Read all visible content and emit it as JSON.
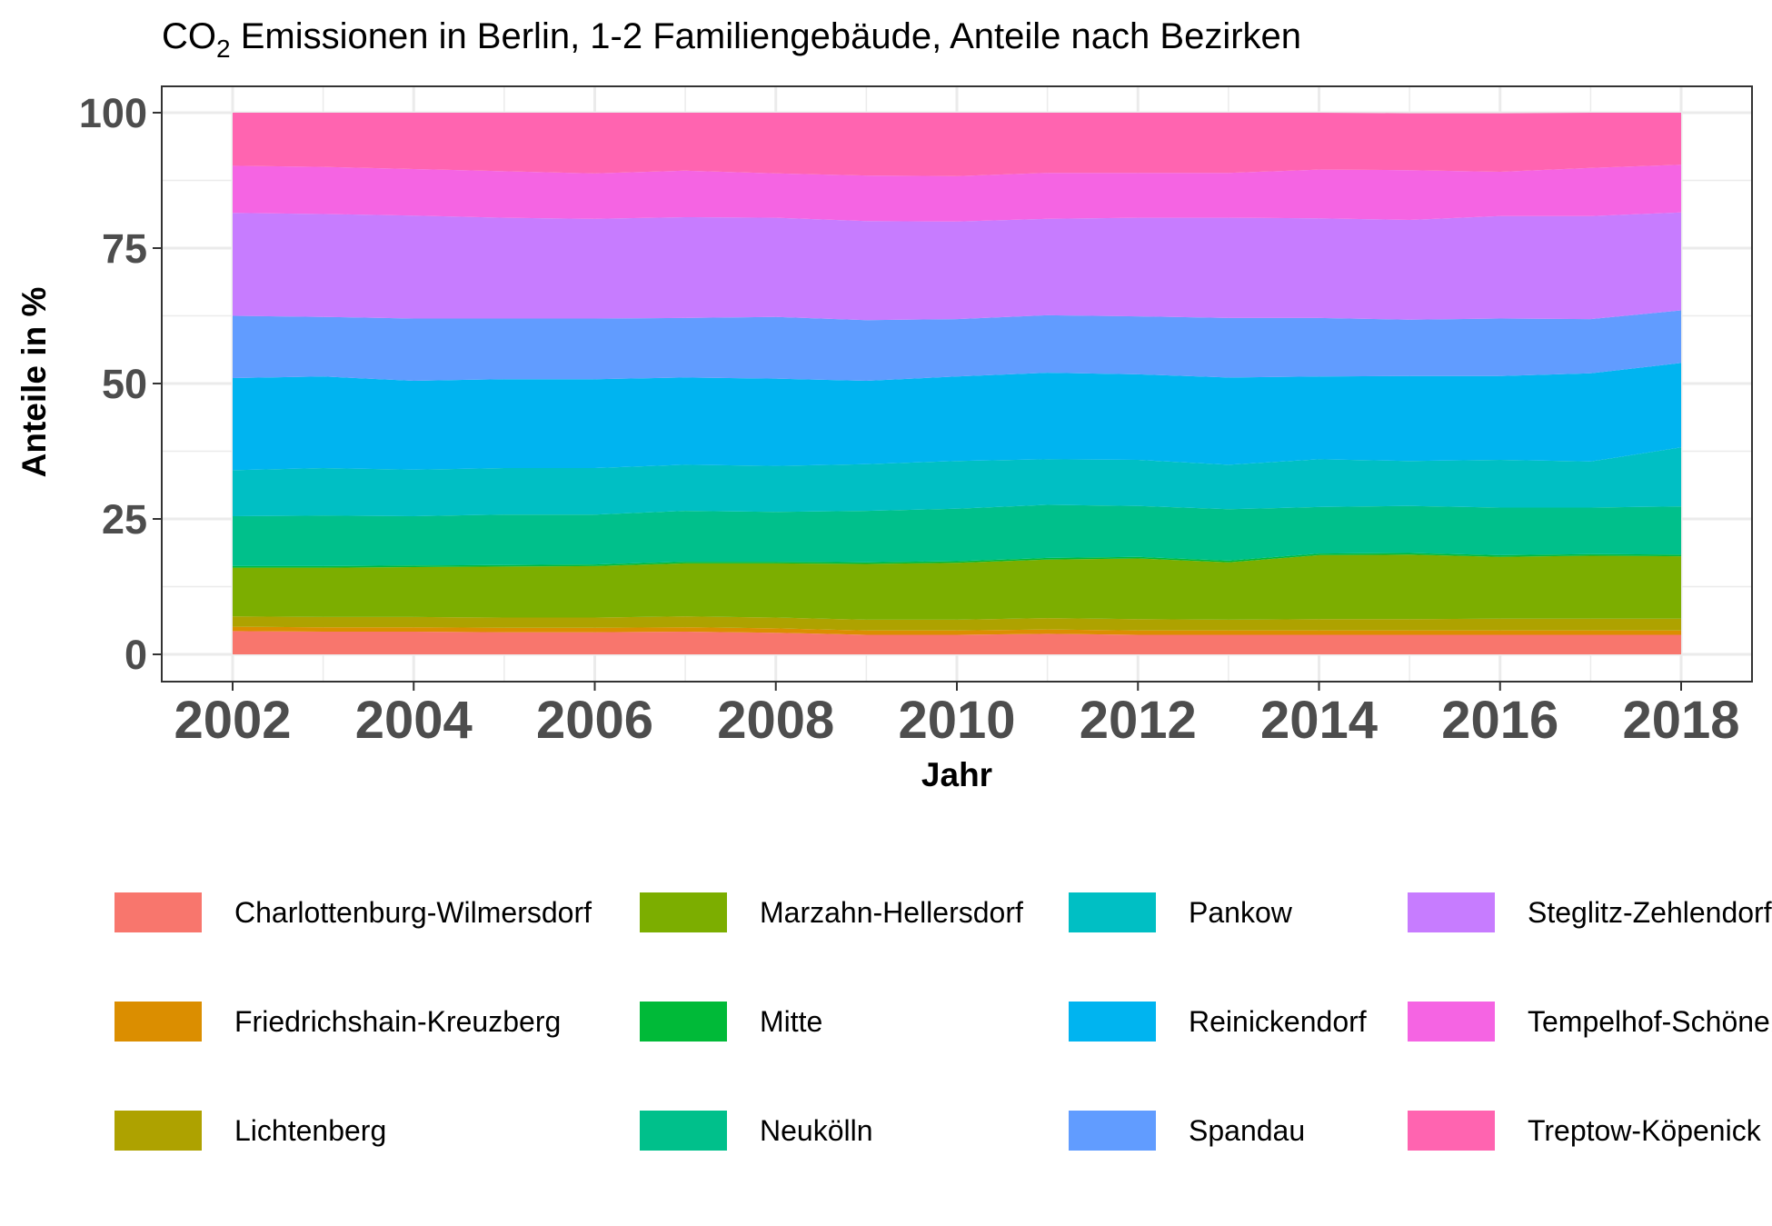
{
  "chart_data": {
    "type": "area",
    "stacked": true,
    "title": "CO",
    "title_sub": "2",
    "title_rest": " Emissionen in Berlin, 1-2 Familiengebäude, Anteile nach Bezirken",
    "xlabel": "Jahr",
    "ylabel": "Anteile in %",
    "xlim": [
      2002,
      2018
    ],
    "ylim": [
      0,
      100
    ],
    "x_ticks": [
      2002,
      2004,
      2006,
      2008,
      2010,
      2012,
      2014,
      2016,
      2018
    ],
    "y_ticks": [
      0,
      25,
      50,
      75,
      100
    ],
    "grid": true,
    "legend_position": "bottom",
    "x": [
      2002,
      2003,
      2004,
      2005,
      2006,
      2007,
      2008,
      2009,
      2010,
      2011,
      2012,
      2013,
      2014,
      2015,
      2016,
      2017,
      2018
    ],
    "series": [
      {
        "name": "Charlottenburg-Wilmersdorf",
        "color": "#F8766D",
        "values": [
          4.3,
          4.2,
          4.2,
          4.1,
          4.1,
          4.2,
          4.0,
          3.6,
          3.6,
          3.8,
          3.6,
          3.6,
          3.6,
          3.6,
          3.6,
          3.6,
          3.6
        ]
      },
      {
        "name": "Friedrichshain-Kreuzberg",
        "color": "#DB8E00",
        "values": [
          0.8,
          0.8,
          0.8,
          0.8,
          0.8,
          0.8,
          0.8,
          0.8,
          0.8,
          0.8,
          0.8,
          0.8,
          0.8,
          0.8,
          0.8,
          0.8,
          0.8
        ]
      },
      {
        "name": "Lichtenberg",
        "color": "#AEA200",
        "values": [
          1.9,
          1.9,
          1.9,
          1.9,
          1.9,
          2.0,
          2.0,
          2.0,
          2.0,
          2.1,
          2.1,
          2.0,
          2.1,
          2.1,
          2.2,
          2.2,
          2.2
        ]
      },
      {
        "name": "Marzahn-Hellersdorf",
        "color": "#7CAE00",
        "values": [
          9.0,
          9.1,
          9.2,
          9.4,
          9.5,
          9.8,
          10.0,
          10.3,
          10.5,
          10.8,
          11.2,
          10.6,
          11.8,
          11.9,
          11.4,
          11.6,
          11.5
        ]
      },
      {
        "name": "Mitte",
        "color": "#00BA38",
        "values": [
          0.3,
          0.3,
          0.3,
          0.3,
          0.3,
          0.3,
          0.3,
          0.3,
          0.3,
          0.3,
          0.3,
          0.3,
          0.3,
          0.3,
          0.3,
          0.3,
          0.3
        ]
      },
      {
        "name": "Neukölln",
        "color": "#00C08B",
        "values": [
          9.2,
          9.3,
          9.1,
          9.3,
          9.2,
          9.4,
          9.2,
          9.5,
          9.7,
          9.8,
          9.4,
          9.5,
          8.6,
          8.7,
          8.8,
          8.6,
          8.9
        ]
      },
      {
        "name": "Pankow",
        "color": "#00BFC4",
        "values": [
          8.5,
          8.8,
          8.6,
          8.6,
          8.6,
          8.5,
          8.5,
          8.6,
          8.8,
          8.4,
          8.5,
          8.2,
          8.8,
          8.3,
          8.8,
          8.5,
          10.9
        ]
      },
      {
        "name": "Reinickendorf",
        "color": "#00B4F0",
        "values": [
          17.0,
          16.9,
          16.4,
          16.4,
          16.4,
          16.1,
          16.1,
          15.4,
          15.6,
          16.0,
          15.8,
          16.1,
          15.3,
          15.7,
          15.5,
          16.3,
          15.6
        ]
      },
      {
        "name": "Spandau",
        "color": "#619CFF",
        "values": [
          11.5,
          11.0,
          11.5,
          11.2,
          11.2,
          11.0,
          11.4,
          11.2,
          10.6,
          10.6,
          10.7,
          11.0,
          10.8,
          10.4,
          10.6,
          10.0,
          9.7
        ]
      },
      {
        "name": "Steglitz-Zehlendorf",
        "color": "#C77CFF",
        "values": [
          19.0,
          19.0,
          19.0,
          18.6,
          18.4,
          18.6,
          18.3,
          18.3,
          18.0,
          17.8,
          18.2,
          18.5,
          18.4,
          18.4,
          18.9,
          19.0,
          18.1
        ]
      },
      {
        "name": "Tempelhof-Schöneberg",
        "color": "#F564E3",
        "values": [
          8.7,
          8.7,
          8.6,
          8.6,
          8.4,
          8.6,
          8.2,
          8.4,
          8.4,
          8.5,
          8.3,
          8.3,
          9.0,
          9.2,
          8.2,
          8.9,
          8.8
        ]
      },
      {
        "name": "Treptow-Köpenick",
        "color": "#FF64B0",
        "values": [
          9.8,
          10.0,
          10.4,
          10.8,
          11.2,
          10.7,
          11.2,
          11.6,
          11.7,
          11.1,
          11.1,
          11.1,
          10.5,
          10.5,
          10.8,
          10.2,
          9.6
        ]
      }
    ]
  }
}
